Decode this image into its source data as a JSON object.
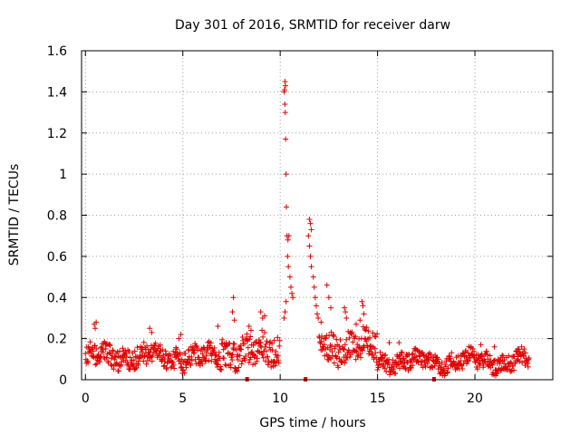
{
  "chart_data": {
    "type": "scatter",
    "title": "Day 301 of 2016, SRMTID for receiver darw",
    "xlabel": "GPS time / hours",
    "ylabel": "SRMTID / TECUs",
    "xlim": [
      -0.2,
      24.0
    ],
    "ylim": [
      0,
      1.6
    ],
    "xticks": [
      0,
      5,
      10,
      15,
      20
    ],
    "xtick_labels": [
      "0",
      "5",
      "10",
      "15",
      "20"
    ],
    "yticks": [
      0,
      0.2,
      0.4,
      0.6,
      0.8,
      1.0,
      1.2,
      1.4,
      1.6
    ],
    "ytick_labels": [
      "0",
      "0.2",
      "0.4",
      "0.6",
      "0.8",
      "1",
      "1.2",
      "1.4",
      "1.6"
    ],
    "grid": true,
    "marker": "+",
    "color": "#e00000",
    "baseline_segments": [
      {
        "x_start": 0.0,
        "x_end": 7.0,
        "level": 0.11,
        "spread": 0.05
      },
      {
        "x_start": 7.0,
        "x_end": 10.0,
        "level": 0.14,
        "spread": 0.07
      },
      {
        "x_start": 12.0,
        "x_end": 15.0,
        "level": 0.16,
        "spread": 0.07
      },
      {
        "x_start": 15.0,
        "x_end": 18.0,
        "level": 0.09,
        "spread": 0.04
      },
      {
        "x_start": 18.0,
        "x_end": 22.8,
        "level": 0.09,
        "spread": 0.04
      }
    ],
    "features": [
      {
        "x": 0.45,
        "y": 0.27
      },
      {
        "x": 0.5,
        "y": 0.25
      },
      {
        "x": 0.55,
        "y": 0.28
      },
      {
        "x": 3.3,
        "y": 0.25
      },
      {
        "x": 3.4,
        "y": 0.23
      },
      {
        "x": 4.8,
        "y": 0.2
      },
      {
        "x": 4.9,
        "y": 0.22
      },
      {
        "x": 6.8,
        "y": 0.26
      },
      {
        "x": 7.6,
        "y": 0.4
      },
      {
        "x": 7.55,
        "y": 0.33
      },
      {
        "x": 7.65,
        "y": 0.29
      },
      {
        "x": 8.4,
        "y": 0.26
      },
      {
        "x": 8.5,
        "y": 0.24
      },
      {
        "x": 9.0,
        "y": 0.33
      },
      {
        "x": 9.1,
        "y": 0.3
      },
      {
        "x": 9.2,
        "y": 0.31
      },
      {
        "x": 10.25,
        "y": 1.45
      },
      {
        "x": 10.27,
        "y": 1.43
      },
      {
        "x": 10.22,
        "y": 1.41
      },
      {
        "x": 10.2,
        "y": 1.4
      },
      {
        "x": 10.24,
        "y": 1.34
      },
      {
        "x": 10.26,
        "y": 1.3
      },
      {
        "x": 10.28,
        "y": 1.17
      },
      {
        "x": 10.3,
        "y": 1.0
      },
      {
        "x": 10.32,
        "y": 0.84
      },
      {
        "x": 10.35,
        "y": 0.7
      },
      {
        "x": 10.4,
        "y": 0.68
      },
      {
        "x": 10.45,
        "y": 0.7
      },
      {
        "x": 10.38,
        "y": 0.6
      },
      {
        "x": 10.42,
        "y": 0.55
      },
      {
        "x": 10.5,
        "y": 0.5
      },
      {
        "x": 10.55,
        "y": 0.45
      },
      {
        "x": 10.6,
        "y": 0.42
      },
      {
        "x": 10.65,
        "y": 0.4
      },
      {
        "x": 10.3,
        "y": 0.38
      },
      {
        "x": 10.25,
        "y": 0.33
      },
      {
        "x": 10.2,
        "y": 0.3
      },
      {
        "x": 11.5,
        "y": 0.78
      },
      {
        "x": 11.55,
        "y": 0.76
      },
      {
        "x": 11.6,
        "y": 0.73
      },
      {
        "x": 11.45,
        "y": 0.7
      },
      {
        "x": 11.5,
        "y": 0.65
      },
      {
        "x": 11.55,
        "y": 0.6
      },
      {
        "x": 11.6,
        "y": 0.55
      },
      {
        "x": 11.7,
        "y": 0.5
      },
      {
        "x": 11.75,
        "y": 0.45
      },
      {
        "x": 11.8,
        "y": 0.4
      },
      {
        "x": 11.85,
        "y": 0.36
      },
      {
        "x": 11.9,
        "y": 0.32
      },
      {
        "x": 11.95,
        "y": 0.3
      },
      {
        "x": 12.1,
        "y": 0.28
      },
      {
        "x": 12.4,
        "y": 0.46
      },
      {
        "x": 12.5,
        "y": 0.4
      },
      {
        "x": 12.6,
        "y": 0.35
      },
      {
        "x": 13.3,
        "y": 0.35
      },
      {
        "x": 13.35,
        "y": 0.33
      },
      {
        "x": 13.4,
        "y": 0.3
      },
      {
        "x": 14.2,
        "y": 0.38
      },
      {
        "x": 14.25,
        "y": 0.36
      },
      {
        "x": 14.3,
        "y": 0.32
      },
      {
        "x": 14.1,
        "y": 0.29
      },
      {
        "x": 13.9,
        "y": 0.27
      },
      {
        "x": 15.6,
        "y": 0.18
      },
      {
        "x": 16.1,
        "y": 0.18
      },
      {
        "x": 19.8,
        "y": 0.16
      },
      {
        "x": 20.3,
        "y": 0.17
      },
      {
        "x": 21.0,
        "y": 0.16
      },
      {
        "x": 22.2,
        "y": 0.15
      }
    ],
    "gap_markers_x": [
      8.3,
      11.3,
      17.9
    ]
  }
}
